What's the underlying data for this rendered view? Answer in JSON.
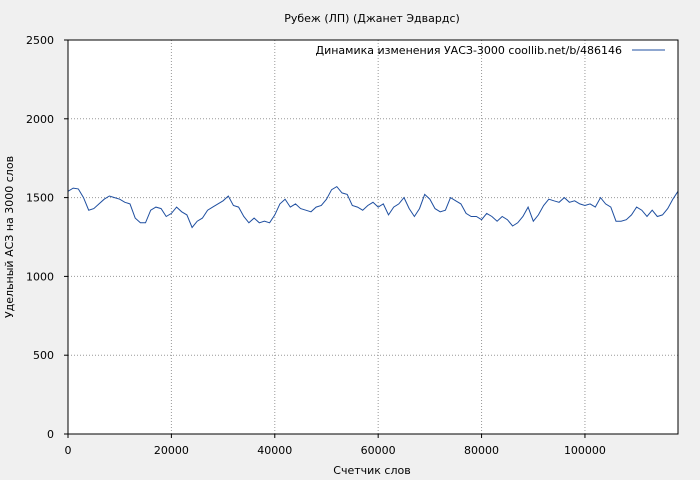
{
  "chart_data": {
    "type": "line",
    "title": "Рубеж (ЛП) (Джанет Эдвардс)",
    "xlabel": "Счетчик слов",
    "ylabel": "Удельный АСЗ на 3000 слов",
    "xlim": [
      0,
      118000
    ],
    "ylim": [
      0,
      2500
    ],
    "xticks": [
      0,
      20000,
      40000,
      60000,
      80000,
      100000
    ],
    "yticks": [
      0,
      500,
      1000,
      1500,
      2000,
      2500
    ],
    "grid": true,
    "legend_position": "top-right",
    "series": [
      {
        "name": "Динамика изменения УАСЗ-3000  coollib.net/b/486146",
        "color": "#1f4fa0",
        "x": [
          0,
          1000,
          2000,
          3000,
          4000,
          5000,
          6000,
          7000,
          8000,
          9000,
          10000,
          11000,
          12000,
          13000,
          14000,
          15000,
          16000,
          17000,
          18000,
          19000,
          20000,
          21000,
          22000,
          23000,
          24000,
          25000,
          26000,
          27000,
          28000,
          29000,
          30000,
          31000,
          32000,
          33000,
          34000,
          35000,
          36000,
          37000,
          38000,
          39000,
          40000,
          41000,
          42000,
          43000,
          44000,
          45000,
          46000,
          47000,
          48000,
          49000,
          50000,
          51000,
          52000,
          53000,
          54000,
          55000,
          56000,
          57000,
          58000,
          59000,
          60000,
          61000,
          62000,
          63000,
          64000,
          65000,
          66000,
          67000,
          68000,
          69000,
          70000,
          71000,
          72000,
          73000,
          74000,
          75000,
          76000,
          77000,
          78000,
          79000,
          80000,
          81000,
          82000,
          83000,
          84000,
          85000,
          86000,
          87000,
          88000,
          89000,
          90000,
          91000,
          92000,
          93000,
          94000,
          95000,
          96000,
          97000,
          98000,
          99000,
          100000,
          101000,
          102000,
          103000,
          104000,
          105000,
          106000,
          107000,
          108000,
          109000,
          110000,
          111000,
          112000,
          113000,
          114000,
          115000,
          116000,
          117000,
          118000
        ],
        "y": [
          1540,
          1560,
          1555,
          1500,
          1420,
          1430,
          1460,
          1490,
          1510,
          1500,
          1490,
          1470,
          1460,
          1370,
          1340,
          1340,
          1420,
          1440,
          1430,
          1380,
          1400,
          1440,
          1410,
          1390,
          1310,
          1350,
          1370,
          1420,
          1440,
          1460,
          1480,
          1510,
          1450,
          1440,
          1380,
          1340,
          1370,
          1340,
          1350,
          1340,
          1390,
          1460,
          1490,
          1440,
          1460,
          1430,
          1420,
          1410,
          1440,
          1450,
          1490,
          1550,
          1570,
          1530,
          1520,
          1450,
          1440,
          1420,
          1450,
          1470,
          1440,
          1460,
          1390,
          1440,
          1460,
          1500,
          1430,
          1380,
          1430,
          1520,
          1490,
          1430,
          1410,
          1420,
          1500,
          1480,
          1460,
          1400,
          1380,
          1380,
          1360,
          1400,
          1380,
          1350,
          1380,
          1360,
          1320,
          1340,
          1380,
          1440,
          1350,
          1390,
          1450,
          1490,
          1480,
          1470,
          1500,
          1470,
          1480,
          1460,
          1450,
          1460,
          1440,
          1500,
          1460,
          1440,
          1350,
          1350,
          1360,
          1390,
          1440,
          1420,
          1380,
          1420,
          1380,
          1390,
          1430,
          1490,
          1540
        ]
      }
    ]
  }
}
